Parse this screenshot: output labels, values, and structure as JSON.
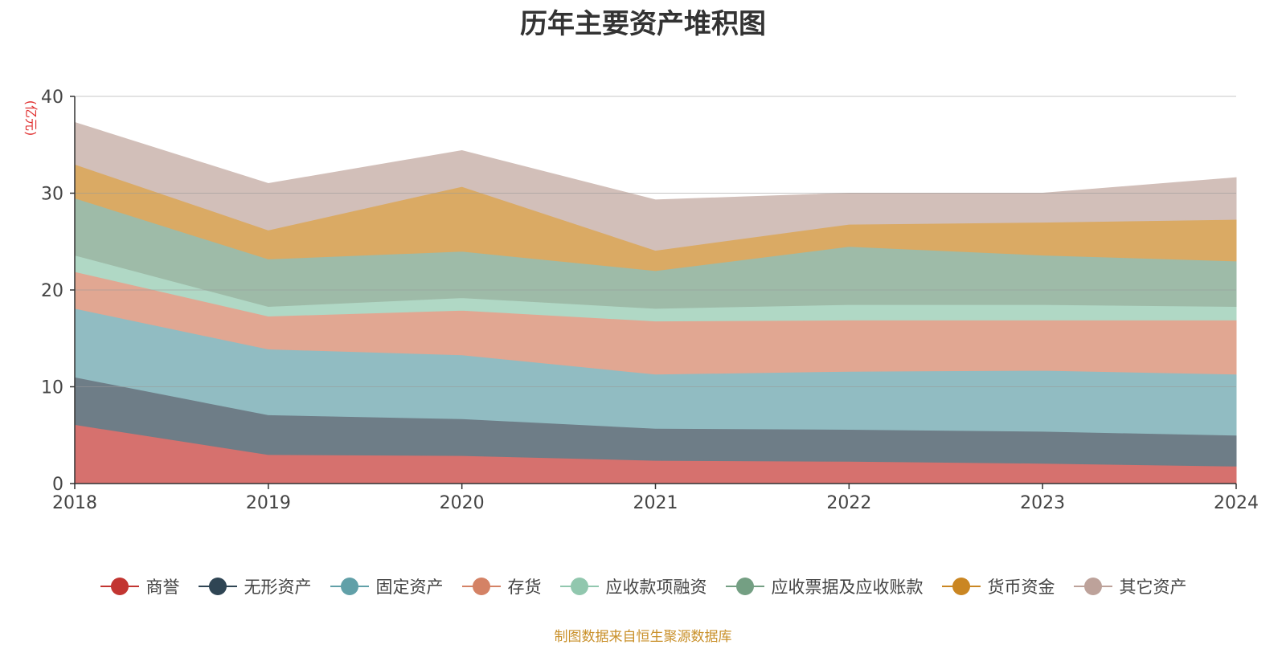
{
  "chart_data": {
    "type": "area",
    "stacked": true,
    "title": "历年主要资产堆积图",
    "ylabel": "(亿元)",
    "xlabel": "",
    "ylim": [
      0,
      40
    ],
    "yticks": [
      0,
      10,
      20,
      30,
      40
    ],
    "grid": true,
    "legend_position": "bottom",
    "x": [
      "2018",
      "2019",
      "2020",
      "2021",
      "2022",
      "2023",
      "2024"
    ],
    "series": [
      {
        "name": "商誉",
        "color": "#c23531",
        "fill": "#d6716e",
        "values": [
          6.1,
          3.0,
          2.9,
          2.4,
          2.3,
          2.1,
          1.8
        ]
      },
      {
        "name": "无形资产",
        "color": "#2f4554",
        "fill": "#6e7d87",
        "values": [
          4.9,
          4.1,
          3.8,
          3.3,
          3.3,
          3.3,
          3.2
        ]
      },
      {
        "name": "固定资产",
        "color": "#61a0a8",
        "fill": "#91bcc2",
        "values": [
          7.1,
          6.8,
          6.6,
          5.6,
          6.0,
          6.3,
          6.3
        ]
      },
      {
        "name": "存货",
        "color": "#d48265",
        "fill": "#e1a792",
        "values": [
          3.8,
          3.4,
          4.6,
          5.5,
          5.3,
          5.2,
          5.6
        ]
      },
      {
        "name": "应收款项融资",
        "color": "#91c7ae",
        "fill": "#b0d8c5",
        "values": [
          1.7,
          1.0,
          1.3,
          1.3,
          1.6,
          1.6,
          1.4
        ]
      },
      {
        "name": "应收票据及应收账款",
        "color": "#749f83",
        "fill": "#9ebba8",
        "values": [
          5.9,
          4.9,
          4.8,
          3.9,
          6.0,
          5.1,
          4.7
        ]
      },
      {
        "name": "货币资金",
        "color": "#ca8622",
        "fill": "#daaa64",
        "values": [
          3.5,
          3.0,
          6.7,
          2.1,
          2.3,
          3.4,
          4.3
        ]
      },
      {
        "name": "其它资产",
        "color": "#bda29a",
        "fill": "#d2bfb9",
        "values": [
          4.3,
          4.8,
          3.7,
          5.2,
          3.2,
          3.0,
          4.3
        ]
      }
    ]
  },
  "footer": {
    "source": "制图数据来自恒生聚源数据库"
  }
}
